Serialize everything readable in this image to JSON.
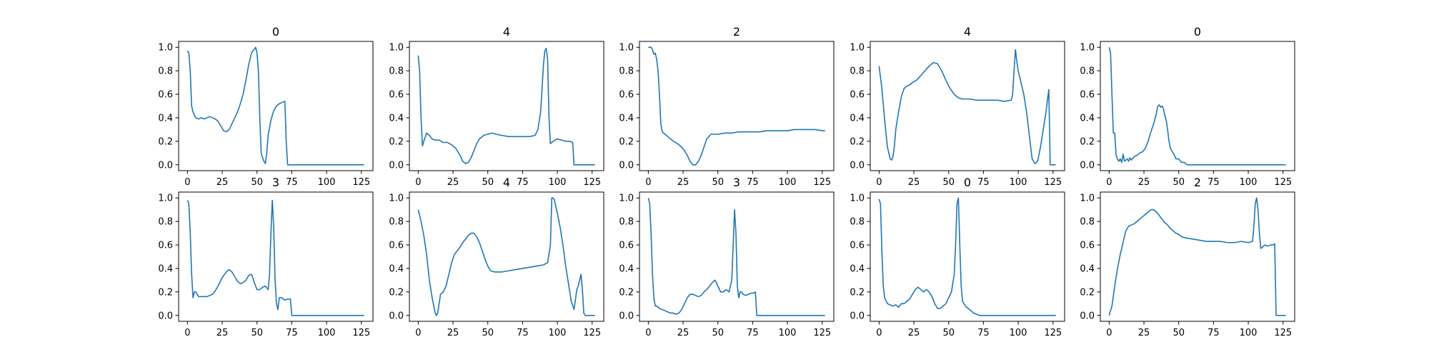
{
  "chart_data": [
    {
      "type": "line",
      "title": "0",
      "xlim": [
        -6.35,
        133.35
      ],
      "ylim": [
        -0.05,
        1.05
      ],
      "xticks": [
        "0",
        "25",
        "50",
        "75",
        "100",
        "125"
      ],
      "yticks": [
        "0.0",
        "0.2",
        "0.4",
        "0.6",
        "0.8",
        "1.0"
      ],
      "x": [
        0,
        1,
        2,
        3,
        4,
        5,
        6,
        8,
        10,
        12,
        14,
        16,
        18,
        20,
        22,
        24,
        26,
        28,
        30,
        32,
        34,
        36,
        38,
        40,
        42,
        44,
        46,
        47,
        48,
        49,
        50,
        51,
        52,
        53,
        54,
        55,
        56,
        57,
        58,
        60,
        62,
        64,
        66,
        68,
        70,
        71,
        72,
        127
      ],
      "y": [
        0.97,
        0.95,
        0.8,
        0.5,
        0.45,
        0.42,
        0.4,
        0.39,
        0.4,
        0.39,
        0.4,
        0.41,
        0.4,
        0.39,
        0.37,
        0.33,
        0.29,
        0.28,
        0.3,
        0.35,
        0.4,
        0.45,
        0.52,
        0.6,
        0.72,
        0.85,
        0.95,
        0.97,
        0.98,
        1.0,
        0.95,
        0.8,
        0.4,
        0.1,
        0.06,
        0.03,
        0.01,
        0.1,
        0.25,
        0.38,
        0.46,
        0.5,
        0.52,
        0.53,
        0.54,
        0.2,
        0.0,
        0.0
      ]
    },
    {
      "type": "line",
      "title": "4",
      "xlim": [
        -6.35,
        133.35
      ],
      "ylim": [
        -0.05,
        1.05
      ],
      "xticks": [
        "0",
        "25",
        "50",
        "75",
        "100",
        "125"
      ],
      "yticks": [
        "0.0",
        "0.2",
        "0.4",
        "0.6",
        "0.8",
        "1.0"
      ],
      "x": [
        0,
        1,
        2,
        3,
        4,
        6,
        8,
        10,
        12,
        15,
        18,
        21,
        24,
        27,
        30,
        32,
        34,
        36,
        38,
        40,
        42,
        44,
        47,
        50,
        53,
        56,
        60,
        65,
        70,
        75,
        80,
        84,
        86,
        88,
        89,
        90,
        91,
        92,
        93,
        94,
        95,
        97,
        100,
        103,
        106,
        109,
        111,
        112,
        120,
        127
      ],
      "y": [
        0.93,
        0.8,
        0.4,
        0.16,
        0.2,
        0.27,
        0.25,
        0.22,
        0.21,
        0.21,
        0.19,
        0.19,
        0.17,
        0.14,
        0.08,
        0.03,
        0.01,
        0.02,
        0.06,
        0.12,
        0.18,
        0.22,
        0.25,
        0.26,
        0.27,
        0.26,
        0.25,
        0.24,
        0.24,
        0.24,
        0.24,
        0.25,
        0.3,
        0.45,
        0.65,
        0.85,
        0.97,
        0.99,
        0.9,
        0.4,
        0.18,
        0.2,
        0.22,
        0.21,
        0.2,
        0.2,
        0.19,
        0.0,
        0.0,
        0.0
      ]
    },
    {
      "type": "line",
      "title": "2",
      "xlim": [
        -6.35,
        133.35
      ],
      "ylim": [
        -0.05,
        1.05
      ],
      "xticks": [
        "0",
        "25",
        "50",
        "75",
        "100",
        "125"
      ],
      "yticks": [
        "0.0",
        "0.2",
        "0.4",
        "0.6",
        "0.8",
        "1.0"
      ],
      "x": [
        0,
        2,
        3,
        4,
        5,
        6,
        7,
        8,
        9,
        10,
        12,
        15,
        18,
        21,
        24,
        26,
        28,
        30,
        32,
        34,
        36,
        38,
        40,
        42,
        45,
        50,
        55,
        60,
        65,
        70,
        75,
        80,
        85,
        90,
        95,
        100,
        105,
        110,
        115,
        120,
        125,
        127
      ],
      "y": [
        1.0,
        1.0,
        0.98,
        0.94,
        0.95,
        0.9,
        0.8,
        0.6,
        0.35,
        0.28,
        0.26,
        0.23,
        0.2,
        0.18,
        0.15,
        0.12,
        0.08,
        0.03,
        0.0,
        0.0,
        0.03,
        0.08,
        0.15,
        0.22,
        0.26,
        0.26,
        0.27,
        0.27,
        0.28,
        0.28,
        0.28,
        0.28,
        0.29,
        0.29,
        0.29,
        0.29,
        0.3,
        0.3,
        0.3,
        0.3,
        0.29,
        0.29
      ]
    },
    {
      "type": "line",
      "title": "4",
      "xlim": [
        -6.35,
        133.35
      ],
      "ylim": [
        -0.05,
        1.05
      ],
      "xticks": [
        "0",
        "25",
        "50",
        "75",
        "100",
        "125"
      ],
      "yticks": [
        "0.0",
        "0.2",
        "0.4",
        "0.6",
        "0.8",
        "1.0"
      ],
      "x": [
        0,
        2,
        4,
        6,
        8,
        9,
        10,
        11,
        12,
        14,
        16,
        18,
        20,
        22,
        24,
        27,
        30,
        33,
        36,
        39,
        42,
        45,
        48,
        51,
        54,
        57,
        60,
        65,
        70,
        75,
        80,
        85,
        90,
        95,
        96,
        97,
        98,
        99,
        100,
        102,
        104,
        106,
        108,
        110,
        112,
        114,
        116,
        118,
        120,
        121,
        122,
        123,
        127
      ],
      "y": [
        0.84,
        0.65,
        0.38,
        0.15,
        0.05,
        0.04,
        0.07,
        0.16,
        0.3,
        0.45,
        0.58,
        0.65,
        0.67,
        0.68,
        0.7,
        0.72,
        0.76,
        0.8,
        0.84,
        0.87,
        0.86,
        0.8,
        0.72,
        0.65,
        0.6,
        0.57,
        0.56,
        0.56,
        0.55,
        0.55,
        0.55,
        0.55,
        0.54,
        0.55,
        0.6,
        0.8,
        0.98,
        0.88,
        0.8,
        0.7,
        0.6,
        0.45,
        0.25,
        0.05,
        0.01,
        0.03,
        0.15,
        0.3,
        0.45,
        0.55,
        0.64,
        0.0,
        0.0
      ]
    },
    {
      "type": "line",
      "title": "0",
      "xlim": [
        -6.35,
        133.35
      ],
      "ylim": [
        -0.05,
        1.05
      ],
      "xticks": [
        "0",
        "25",
        "50",
        "75",
        "100",
        "125"
      ],
      "yticks": [
        "0.0",
        "0.2",
        "0.4",
        "0.6",
        "0.8",
        "1.0"
      ],
      "x": [
        0,
        1,
        2,
        3,
        4,
        5,
        6,
        7,
        8,
        9,
        10,
        11,
        12,
        13,
        14,
        15,
        16,
        18,
        20,
        22,
        24,
        26,
        28,
        30,
        32,
        34,
        35,
        36,
        37,
        38,
        39,
        40,
        41,
        42,
        43,
        44,
        45,
        46,
        47,
        48,
        50,
        52,
        54,
        56,
        127
      ],
      "y": [
        1.0,
        0.95,
        0.6,
        0.27,
        0.27,
        0.08,
        0.05,
        0.03,
        0.05,
        0.02,
        0.09,
        0.03,
        0.04,
        0.05,
        0.03,
        0.06,
        0.04,
        0.07,
        0.08,
        0.1,
        0.11,
        0.14,
        0.2,
        0.28,
        0.35,
        0.44,
        0.5,
        0.51,
        0.49,
        0.5,
        0.48,
        0.42,
        0.38,
        0.3,
        0.2,
        0.14,
        0.12,
        0.1,
        0.08,
        0.05,
        0.05,
        0.02,
        0.02,
        0.0,
        0.0
      ]
    },
    {
      "type": "line",
      "title": "3",
      "xlim": [
        -6.35,
        133.35
      ],
      "ylim": [
        -0.05,
        1.05
      ],
      "xticks": [
        "0",
        "25",
        "50",
        "75",
        "100",
        "125"
      ],
      "yticks": [
        "0.0",
        "0.2",
        "0.4",
        "0.6",
        "0.8",
        "1.0"
      ],
      "x": [
        0,
        1,
        2,
        3,
        4,
        5,
        6,
        8,
        10,
        12,
        14,
        16,
        18,
        20,
        22,
        24,
        26,
        28,
        30,
        32,
        34,
        36,
        38,
        40,
        42,
        44,
        46,
        47,
        48,
        50,
        52,
        54,
        56,
        58,
        59,
        60,
        61,
        62,
        63,
        64,
        65,
        66,
        68,
        70,
        72,
        74,
        75,
        127
      ],
      "y": [
        0.98,
        0.95,
        0.7,
        0.35,
        0.15,
        0.2,
        0.2,
        0.16,
        0.16,
        0.16,
        0.16,
        0.17,
        0.18,
        0.21,
        0.25,
        0.3,
        0.34,
        0.37,
        0.39,
        0.37,
        0.33,
        0.29,
        0.27,
        0.28,
        0.3,
        0.34,
        0.35,
        0.32,
        0.28,
        0.22,
        0.22,
        0.24,
        0.25,
        0.22,
        0.35,
        0.7,
        0.98,
        0.75,
        0.3,
        0.1,
        0.05,
        0.15,
        0.15,
        0.13,
        0.14,
        0.14,
        0.0,
        0.0
      ]
    },
    {
      "type": "line",
      "title": "4",
      "xlim": [
        -6.35,
        133.35
      ],
      "ylim": [
        -0.05,
        1.05
      ],
      "xticks": [
        "0",
        "25",
        "50",
        "75",
        "100",
        "125"
      ],
      "yticks": [
        "0.0",
        "0.2",
        "0.4",
        "0.6",
        "0.8",
        "1.0"
      ],
      "x": [
        0,
        2,
        4,
        6,
        8,
        10,
        12,
        13,
        14,
        15,
        16,
        18,
        20,
        22,
        24,
        26,
        28,
        30,
        32,
        34,
        36,
        38,
        40,
        42,
        44,
        46,
        48,
        50,
        52,
        55,
        60,
        65,
        70,
        75,
        80,
        85,
        90,
        93,
        95,
        96,
        97,
        98,
        99,
        100,
        102,
        104,
        106,
        108,
        110,
        112,
        114,
        115,
        116,
        117,
        118,
        119,
        120,
        127
      ],
      "y": [
        0.9,
        0.8,
        0.68,
        0.52,
        0.3,
        0.15,
        0.03,
        0.0,
        0.02,
        0.1,
        0.18,
        0.2,
        0.25,
        0.35,
        0.45,
        0.52,
        0.55,
        0.58,
        0.62,
        0.65,
        0.68,
        0.7,
        0.7,
        0.67,
        0.62,
        0.55,
        0.48,
        0.42,
        0.38,
        0.37,
        0.37,
        0.38,
        0.39,
        0.4,
        0.41,
        0.42,
        0.43,
        0.45,
        0.6,
        1.0,
        1.0,
        0.98,
        0.92,
        0.87,
        0.75,
        0.6,
        0.42,
        0.27,
        0.12,
        0.05,
        0.22,
        0.25,
        0.3,
        0.35,
        0.22,
        0.02,
        0.0,
        0.0
      ]
    },
    {
      "type": "line",
      "title": "3",
      "xlim": [
        -6.35,
        133.35
      ],
      "ylim": [
        -0.05,
        1.05
      ],
      "xticks": [
        "0",
        "25",
        "50",
        "75",
        "100",
        "125"
      ],
      "yticks": [
        "0.0",
        "0.2",
        "0.4",
        "0.6",
        "0.8",
        "1.0"
      ],
      "x": [
        0,
        1,
        2,
        3,
        4,
        5,
        6,
        8,
        10,
        12,
        14,
        16,
        18,
        20,
        22,
        24,
        26,
        28,
        30,
        32,
        34,
        36,
        38,
        40,
        42,
        44,
        46,
        48,
        50,
        52,
        54,
        56,
        58,
        60,
        61,
        62,
        63,
        64,
        65,
        66,
        67,
        68,
        70,
        72,
        74,
        76,
        77,
        78,
        127
      ],
      "y": [
        1.0,
        0.95,
        0.7,
        0.35,
        0.15,
        0.08,
        0.08,
        0.06,
        0.05,
        0.04,
        0.03,
        0.02,
        0.02,
        0.01,
        0.02,
        0.05,
        0.1,
        0.15,
        0.18,
        0.18,
        0.17,
        0.16,
        0.17,
        0.2,
        0.22,
        0.25,
        0.28,
        0.3,
        0.25,
        0.2,
        0.2,
        0.22,
        0.2,
        0.3,
        0.6,
        0.9,
        0.7,
        0.25,
        0.15,
        0.2,
        0.2,
        0.18,
        0.17,
        0.18,
        0.19,
        0.19,
        0.2,
        0.0,
        0.0
      ]
    },
    {
      "type": "line",
      "title": "0",
      "xlim": [
        -6.35,
        133.35
      ],
      "ylim": [
        -0.05,
        1.05
      ],
      "xticks": [
        "0",
        "25",
        "50",
        "75",
        "100",
        "125"
      ],
      "yticks": [
        "0.0",
        "0.2",
        "0.4",
        "0.6",
        "0.8",
        "1.0"
      ],
      "x": [
        0,
        1,
        2,
        3,
        4,
        6,
        8,
        10,
        12,
        14,
        16,
        18,
        20,
        22,
        24,
        26,
        28,
        30,
        32,
        34,
        36,
        38,
        40,
        42,
        44,
        46,
        48,
        50,
        52,
        54,
        55,
        56,
        57,
        58,
        59,
        60,
        62,
        64,
        66,
        68,
        70,
        72,
        127
      ],
      "y": [
        0.99,
        0.95,
        0.55,
        0.25,
        0.15,
        0.1,
        0.09,
        0.08,
        0.09,
        0.07,
        0.1,
        0.1,
        0.12,
        0.14,
        0.18,
        0.22,
        0.24,
        0.22,
        0.2,
        0.22,
        0.2,
        0.16,
        0.1,
        0.06,
        0.06,
        0.08,
        0.1,
        0.15,
        0.2,
        0.35,
        0.6,
        0.95,
        1.0,
        0.6,
        0.25,
        0.12,
        0.08,
        0.06,
        0.04,
        0.02,
        0.01,
        0.0,
        0.0
      ]
    },
    {
      "type": "line",
      "title": "2",
      "xlim": [
        -6.35,
        133.35
      ],
      "ylim": [
        -0.05,
        1.05
      ],
      "xticks": [
        "0",
        "25",
        "50",
        "75",
        "100",
        "125"
      ],
      "yticks": [
        "0.0",
        "0.2",
        "0.4",
        "0.6",
        "0.8",
        "1.0"
      ],
      "x": [
        0,
        2,
        4,
        6,
        8,
        10,
        12,
        14,
        16,
        18,
        20,
        22,
        24,
        26,
        28,
        30,
        32,
        34,
        36,
        38,
        40,
        42,
        44,
        46,
        48,
        50,
        52,
        55,
        60,
        65,
        70,
        75,
        80,
        85,
        90,
        95,
        100,
        103,
        104,
        105,
        106,
        107,
        108,
        109,
        110,
        112,
        114,
        116,
        118,
        119,
        120,
        121,
        127
      ],
      "y": [
        0.0,
        0.08,
        0.25,
        0.4,
        0.52,
        0.62,
        0.72,
        0.76,
        0.77,
        0.78,
        0.8,
        0.82,
        0.84,
        0.86,
        0.88,
        0.9,
        0.9,
        0.88,
        0.85,
        0.82,
        0.79,
        0.77,
        0.74,
        0.72,
        0.7,
        0.69,
        0.67,
        0.66,
        0.65,
        0.64,
        0.63,
        0.63,
        0.63,
        0.62,
        0.62,
        0.63,
        0.62,
        0.63,
        0.75,
        0.95,
        1.0,
        0.9,
        0.7,
        0.57,
        0.58,
        0.6,
        0.59,
        0.6,
        0.6,
        0.61,
        0.0,
        0.0,
        0.0
      ]
    }
  ]
}
